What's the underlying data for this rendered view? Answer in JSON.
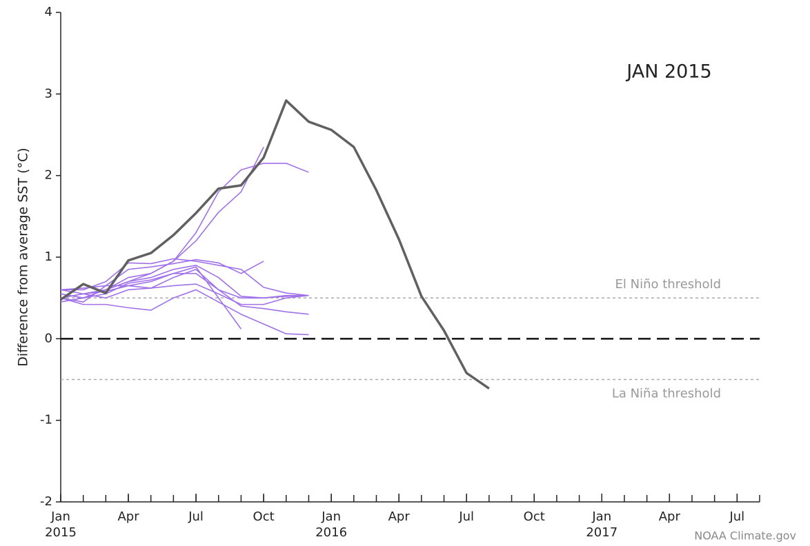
{
  "chart_data": {
    "type": "line",
    "title": "JAN 2015",
    "y_label": "Difference from average SST (°C)",
    "credit": "NOAA Climate.gov",
    "x": [
      "2015-01",
      "2015-02",
      "2015-03",
      "2015-04",
      "2015-05",
      "2015-06",
      "2015-07",
      "2015-08",
      "2015-09",
      "2015-10",
      "2015-11",
      "2015-12",
      "2016-01",
      "2016-02",
      "2016-03",
      "2016-04",
      "2016-05",
      "2016-06",
      "2016-07",
      "2016-08"
    ],
    "series": [
      {
        "color": "#a070e8",
        "values": [
          0.55,
          0.5,
          0.6,
          0.7,
          0.8,
          0.95,
          1.2,
          1.55,
          1.8,
          2.35,
          null,
          null,
          null,
          null,
          null,
          null,
          null,
          null,
          null,
          null
        ]
      },
      {
        "color": "#a070e8",
        "values": [
          0.5,
          0.55,
          0.6,
          0.75,
          0.8,
          0.95,
          1.3,
          1.8,
          2.07,
          2.15,
          2.15,
          2.04,
          null,
          null,
          null,
          null,
          null,
          null,
          null,
          null
        ]
      },
      {
        "color": "#a070e8",
        "values": [
          0.6,
          0.6,
          0.7,
          0.93,
          0.92,
          0.98,
          0.95,
          0.9,
          0.85,
          0.63,
          0.56,
          0.53,
          null,
          null,
          null,
          null,
          null,
          null,
          null,
          null
        ]
      },
      {
        "color": "#a070e8",
        "values": [
          0.5,
          0.45,
          0.65,
          0.85,
          0.88,
          0.92,
          0.97,
          0.93,
          0.8,
          0.95,
          null,
          null,
          null,
          null,
          null,
          null,
          null,
          null,
          null,
          null
        ]
      },
      {
        "color": "#a070e8",
        "values": [
          0.55,
          0.5,
          0.6,
          0.7,
          0.75,
          0.85,
          0.9,
          0.75,
          0.52,
          0.5,
          0.52,
          0.53,
          null,
          null,
          null,
          null,
          null,
          null,
          null,
          null
        ]
      },
      {
        "color": "#a070e8",
        "values": [
          0.45,
          0.5,
          0.55,
          0.68,
          0.72,
          0.8,
          0.8,
          0.6,
          0.5,
          0.5,
          0.53,
          0.53,
          null,
          null,
          null,
          null,
          null,
          null,
          null,
          null
        ]
      },
      {
        "color": "#a070e8",
        "values": [
          0.5,
          0.55,
          0.5,
          0.6,
          0.62,
          0.65,
          0.67,
          0.55,
          0.42,
          0.42,
          0.5,
          0.53,
          null,
          null,
          null,
          null,
          null,
          null,
          null,
          null
        ]
      },
      {
        "color": "#a070e8",
        "values": [
          0.6,
          0.62,
          0.65,
          0.65,
          0.62,
          0.75,
          0.85,
          0.6,
          0.4,
          0.37,
          0.33,
          0.3,
          null,
          null,
          null,
          null,
          null,
          null,
          null,
          null
        ]
      },
      {
        "color": "#a070e8",
        "values": [
          0.5,
          0.42,
          0.42,
          0.38,
          0.35,
          0.5,
          0.6,
          0.45,
          0.3,
          0.18,
          0.06,
          0.05,
          null,
          null,
          null,
          null,
          null,
          null,
          null,
          null
        ]
      },
      {
        "color": "#a070e8",
        "values": [
          0.6,
          0.55,
          0.58,
          0.65,
          0.7,
          0.8,
          0.88,
          0.5,
          0.12,
          null,
          null,
          null,
          null,
          null,
          null,
          null,
          null,
          null,
          null,
          null
        ]
      },
      {
        "color": "#606060",
        "values": [
          0.48,
          0.67,
          0.56,
          0.96,
          1.05,
          1.27,
          1.54,
          1.84,
          1.88,
          2.22,
          2.92,
          2.66,
          2.56,
          2.35,
          1.82,
          1.22,
          0.52,
          0.1,
          -0.42,
          -0.61
        ]
      }
    ],
    "reference_lines": [
      {
        "value": 0.5,
        "label": "El Niño threshold"
      },
      {
        "value": -0.5,
        "label": "La Niña threshold"
      },
      {
        "value": 0
      }
    ],
    "xlim": [
      "2015-01",
      "2017-08"
    ],
    "xticks": [
      {
        "value": "2015-01",
        "label": "Jan",
        "year": "2015"
      },
      {
        "value": "2015-04",
        "label": "Apr"
      },
      {
        "value": "2015-07",
        "label": "Jul"
      },
      {
        "value": "2015-10",
        "label": "Oct"
      },
      {
        "value": "2016-01",
        "label": "Jan",
        "year": "2016"
      },
      {
        "value": "2016-04",
        "label": "Apr"
      },
      {
        "value": "2016-07",
        "label": "Jul"
      },
      {
        "value": "2016-10",
        "label": "Oct"
      },
      {
        "value": "2017-01",
        "label": "Jan",
        "year": "2017"
      },
      {
        "value": "2017-04",
        "label": "Apr"
      },
      {
        "value": "2017-07",
        "label": "Jul"
      }
    ],
    "ylim": [
      -2,
      4
    ],
    "yticks": [
      -2,
      -1,
      0,
      1,
      2,
      3,
      4
    ]
  }
}
